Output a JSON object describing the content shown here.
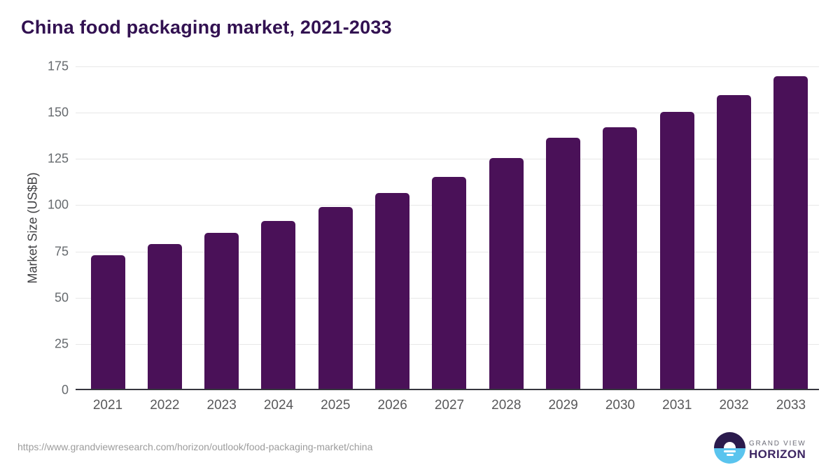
{
  "chart_data": {
    "type": "bar",
    "title": "China food packaging market, 2021-2033",
    "xlabel": "",
    "ylabel": "Market Size (US$B)",
    "categories": [
      "2021",
      "2022",
      "2023",
      "2024",
      "2025",
      "2026",
      "2027",
      "2028",
      "2029",
      "2030",
      "2031",
      "2032",
      "2033"
    ],
    "values": [
      72.3,
      78.3,
      84.3,
      90.6,
      98.2,
      105.9,
      114.7,
      124.8,
      135.8,
      141.2,
      149.8,
      158.8,
      168.9
    ],
    "ylim": [
      0,
      175
    ],
    "yticks": [
      0,
      25,
      50,
      75,
      100,
      125,
      150,
      175
    ],
    "grid": "horizontal-only",
    "legend": "none",
    "bar_color": "#4a1158"
  },
  "colors": {
    "title": "#321151",
    "bar": "#4a1158",
    "gridline": "#e7e7e7",
    "axis_line": "#36363e",
    "tick_text": "#58585a",
    "logo_dark": "#2b1b4d",
    "logo_blue": "#5ac4ee"
  },
  "footer": {
    "source_url": "https://www.grandviewresearch.com/horizon/outlook/food-packaging-market/china",
    "logo": {
      "top": "GRAND VIEW",
      "bottom": "HORIZON"
    }
  }
}
